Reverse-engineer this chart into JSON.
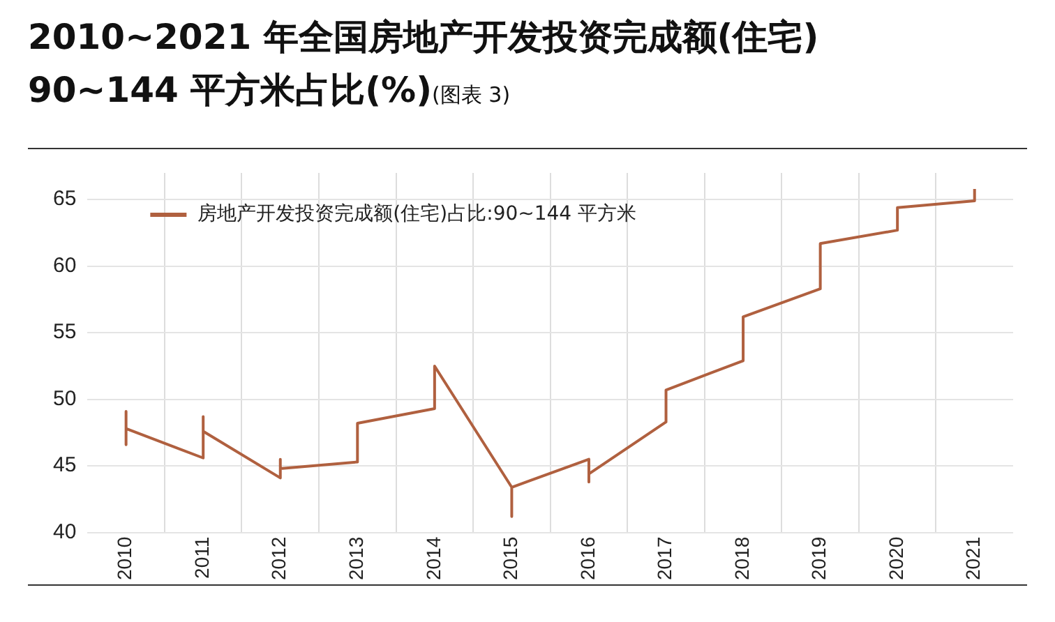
{
  "chart_data": {
    "type": "line",
    "title": "2010~2021 年全国房地产开发投资完成额(住宅)\n90~144 平方米占比(%)",
    "subtitle": "(图表 3)",
    "x": [
      2010,
      2010,
      2010,
      2011,
      2011,
      2011,
      2012,
      2012,
      2012,
      2013,
      2013,
      2014,
      2014,
      2015,
      2015,
      2015,
      2016,
      2016,
      2016,
      2017,
      2017,
      2018,
      2018,
      2019,
      2019,
      2020,
      2020,
      2021,
      2021
    ],
    "series": [
      {
        "name": "房地产开发投资完成额(住宅)占比:90~144 平方米",
        "color": "#b0603f",
        "values": [
          49.1,
          46.6,
          47.8,
          45.6,
          48.7,
          47.6,
          44.1,
          45.5,
          44.8,
          45.3,
          48.2,
          49.3,
          52.5,
          43.4,
          41.2,
          43.4,
          45.5,
          43.8,
          44.4,
          48.3,
          50.7,
          52.9,
          56.2,
          58.3,
          61.7,
          62.7,
          64.4,
          64.9,
          65.8
        ]
      }
    ],
    "xlim": [
      2009.5,
      2021.5
    ],
    "xticks": [
      2010,
      2011,
      2012,
      2013,
      2014,
      2015,
      2016,
      2017,
      2018,
      2019,
      2020,
      2021,
      {
        "value": 2010.5,
        "label": null
      },
      {
        "value": 2011.5,
        "label": null
      },
      {
        "value": 2012.5,
        "label": null
      },
      {
        "value": 2013.5,
        "label": null
      },
      {
        "value": 2014.5,
        "label": null
      },
      {
        "value": 2015.5,
        "label": null
      },
      {
        "value": 2016.5,
        "label": null
      },
      {
        "value": 2017.5,
        "label": null
      },
      {
        "value": 2018.5,
        "label": null
      },
      {
        "value": 2019.5,
        "label": null
      },
      {
        "value": 2020.5,
        "label": null
      }
    ],
    "ylim": [
      40,
      67
    ],
    "yticks": [
      40,
      45,
      50,
      55,
      60,
      65
    ],
    "grid": true,
    "legend": "top left",
    "marker": "none",
    "line_style": "solid"
  }
}
